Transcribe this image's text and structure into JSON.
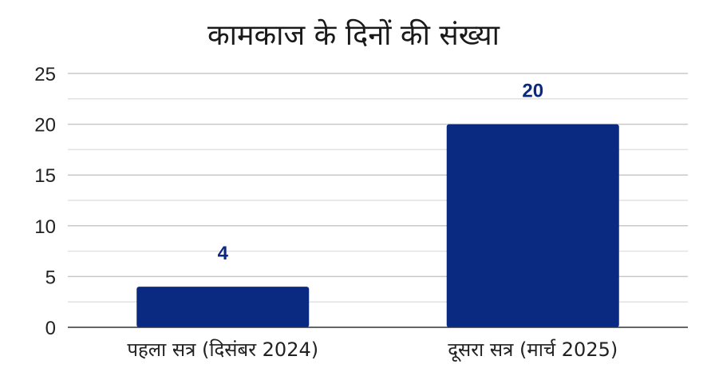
{
  "chart_data": {
    "type": "bar",
    "title": "कामकाज के दिनों की संख्या",
    "categories": [
      "पहला सत्र (दिसंबर 2024)",
      "दूसरा सत्र (मार्च 2025)"
    ],
    "values": [
      4,
      20
    ],
    "ylim": [
      0,
      25
    ],
    "yticks": [
      0,
      5,
      10,
      15,
      20,
      25
    ],
    "minor_grid_step": 2.5,
    "grid": true,
    "legend": "none",
    "data_labels": true,
    "colors": {
      "bar": "#0a2a82",
      "data_label": "#0a2a82",
      "grid_major": "#c8c8c8",
      "grid_minor": "#e2e2e2",
      "axis": "#333333"
    }
  }
}
